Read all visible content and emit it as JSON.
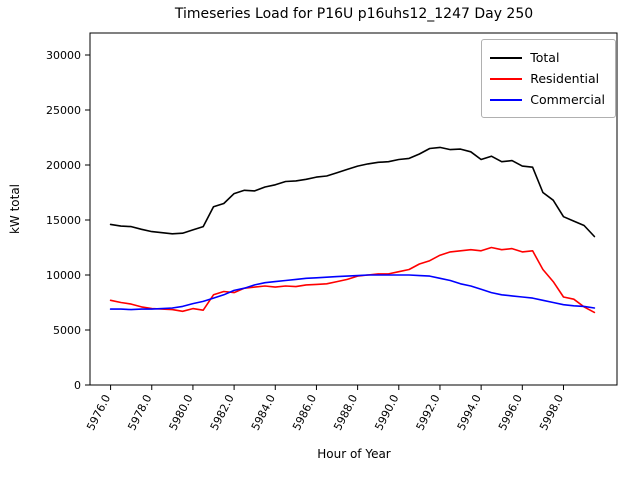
{
  "figure": {
    "title": "Timeseries Load for P16U p16uhs12_1247  Day 250",
    "xlabel": "Hour of Year",
    "ylabel": "kW total"
  },
  "chart_data": {
    "type": "line",
    "title": "Timeseries Load for P16U p16uhs12_1247  Day 250",
    "xlabel": "Hour of Year",
    "ylabel": "kW total",
    "xlim": [
      5975.0,
      6000.6
    ],
    "ylim": [
      0,
      32000
    ],
    "grid": false,
    "legend_position": "upper right",
    "xticks": [
      5976,
      5978,
      5980,
      5982,
      5984,
      5986,
      5988,
      5990,
      5992,
      5994,
      5996,
      5998
    ],
    "xtick_labels": [
      "5976.0",
      "5978.0",
      "5980.0",
      "5982.0",
      "5984.0",
      "5986.0",
      "5988.0",
      "5990.0",
      "5992.0",
      "5994.0",
      "5996.0",
      "5998.0"
    ],
    "yticks": [
      0,
      5000,
      10000,
      15000,
      20000,
      25000,
      30000
    ],
    "ytick_labels": [
      "0",
      "5000",
      "10000",
      "15000",
      "20000",
      "25000",
      "30000"
    ],
    "x": [
      5976,
      5976.5,
      5977,
      5977.5,
      5978,
      5978.5,
      5979,
      5979.5,
      5980,
      5980.5,
      5981,
      5981.5,
      5982,
      5982.5,
      5983,
      5983.5,
      5984,
      5984.5,
      5985,
      5985.5,
      5986,
      5986.5,
      5987,
      5987.5,
      5988,
      5988.5,
      5989,
      5989.5,
      5990,
      5990.5,
      5991,
      5991.5,
      5992,
      5992.5,
      5993,
      5993.5,
      5994,
      5994.5,
      5995,
      5995.5,
      5996,
      5996.5,
      5997,
      5997.5,
      5998,
      5998.5,
      5999,
      5999.5
    ],
    "series": [
      {
        "name": "Total",
        "color": "#000000",
        "values": [
          14600,
          14450,
          14400,
          14150,
          13950,
          13850,
          13750,
          13800,
          14100,
          14400,
          16200,
          16500,
          17400,
          17700,
          17650,
          18000,
          18200,
          18500,
          18550,
          18700,
          18900,
          19000,
          19300,
          19600,
          19900,
          20100,
          20250,
          20300,
          20500,
          20600,
          21000,
          21500,
          21600,
          21400,
          21450,
          21200,
          20500,
          20800,
          20300,
          20400,
          19900,
          19800,
          17500,
          16800,
          15300,
          14900,
          14500,
          13500
        ]
      },
      {
        "name": "Residential",
        "color": "#ff0000",
        "values": [
          7700,
          7500,
          7350,
          7100,
          6950,
          6900,
          6850,
          6700,
          6950,
          6800,
          8200,
          8500,
          8400,
          8800,
          8900,
          9000,
          8900,
          9000,
          8950,
          9100,
          9150,
          9200,
          9400,
          9600,
          9900,
          10000,
          10100,
          10100,
          10300,
          10500,
          11000,
          11300,
          11800,
          12100,
          12200,
          12300,
          12200,
          12500,
          12300,
          12400,
          12100,
          12200,
          10500,
          9400,
          8000,
          7800,
          7100,
          6600
        ]
      },
      {
        "name": "Commercial",
        "color": "#0000ff",
        "values": [
          6900,
          6900,
          6850,
          6900,
          6900,
          6950,
          7000,
          7150,
          7400,
          7600,
          7900,
          8200,
          8600,
          8800,
          9100,
          9300,
          9400,
          9500,
          9600,
          9700,
          9750,
          9800,
          9850,
          9900,
          9950,
          10000,
          10000,
          10000,
          10000,
          10000,
          9950,
          9900,
          9700,
          9500,
          9200,
          9000,
          8700,
          8400,
          8200,
          8100,
          8000,
          7900,
          7700,
          7500,
          7300,
          7200,
          7150,
          7000
        ]
      }
    ]
  }
}
